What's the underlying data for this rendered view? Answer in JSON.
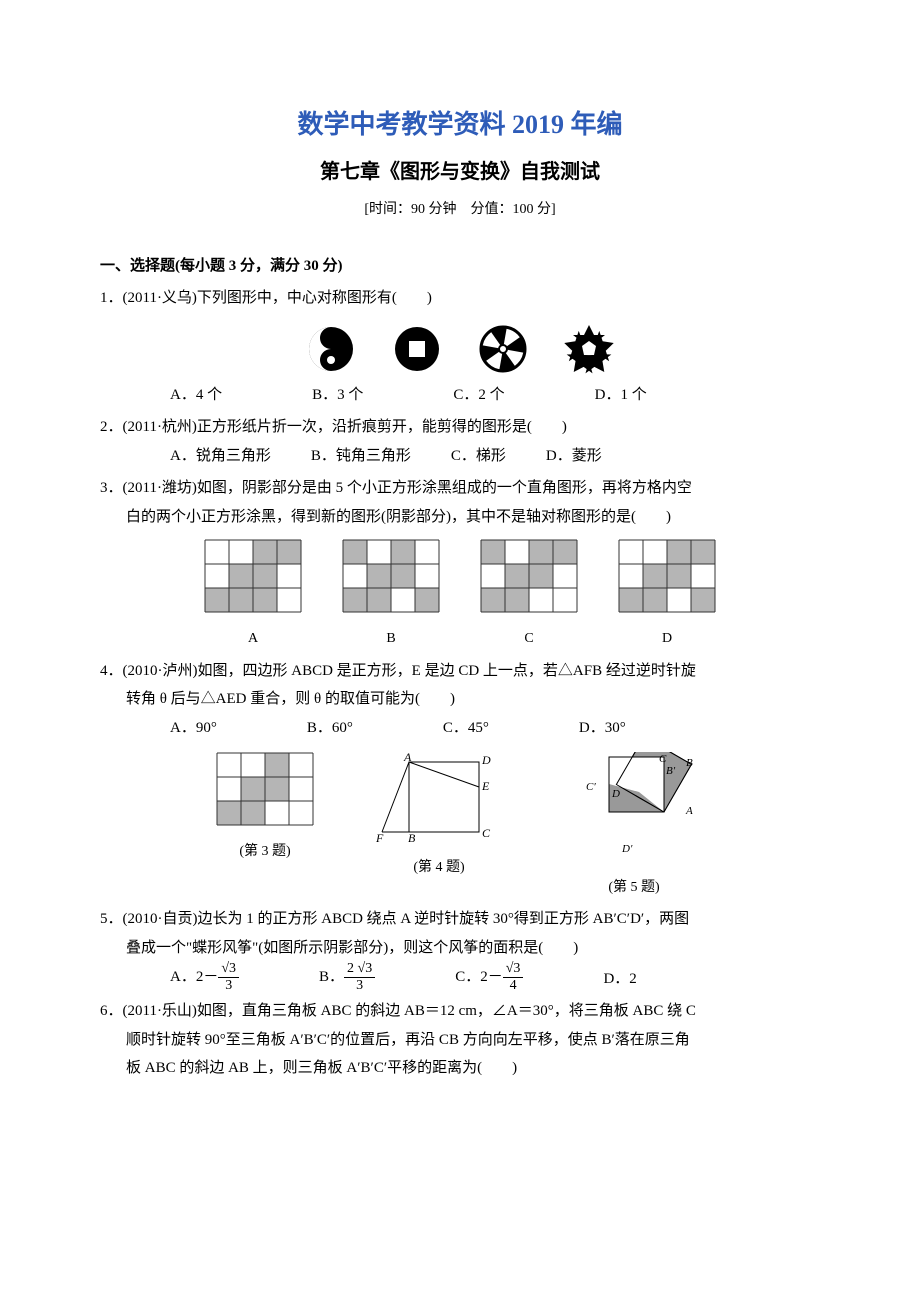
{
  "title1": "数学中考教学资料 2019 年编",
  "title2": "第七章《图形与变换》自我测试",
  "meta": "[时间：90 分钟　分值：100 分]",
  "sectionA": "一、选择题(每小题 3 分，满分 30 分)",
  "q1": {
    "stem": "1．(2011·义乌)下列图形中，中心对称图形有(　　)",
    "opts": [
      "A．4 个",
      "B．3 个",
      "C．2 个",
      "D．1 个"
    ],
    "icons": {
      "fill": "#000000",
      "bg": "#ffffff"
    }
  },
  "q2": {
    "stem": "2．(2011·杭州)正方形纸片折一次，沿折痕剪开，能剪得的图形是(　　)",
    "opts": [
      "A．锐角三角形",
      "B．钝角三角形",
      "C．梯形",
      "D．菱形"
    ]
  },
  "q3": {
    "stem1": "3．(2011·潍坊)如图，阴影部分是由 5 个小正方形涂黑组成的一个直角图形，再将方格内空",
    "stem2": "白的两个小正方形涂黑，得到新的图形(阴影部分)，其中不是轴对称图形的是(　　)",
    "grids_style": {
      "cell": 24,
      "stroke": "#333333",
      "fill": "#b5b5b5",
      "cols": 4,
      "rows": 3
    },
    "grids": {
      "base": [
        [
          0,
          2
        ],
        [
          1,
          1
        ],
        [
          1,
          2
        ],
        [
          2,
          0
        ],
        [
          2,
          1
        ]
      ],
      "A": [
        [
          0,
          3
        ],
        [
          2,
          2
        ]
      ],
      "B": [
        [
          0,
          0
        ],
        [
          2,
          3
        ]
      ],
      "C": [
        [
          0,
          0
        ],
        [
          0,
          3
        ]
      ],
      "D": [
        [
          0,
          3
        ],
        [
          2,
          3
        ]
      ]
    },
    "labels": [
      "A",
      "B",
      "C",
      "D"
    ]
  },
  "q4": {
    "stem1": "4．(2010·泸州)如图，四边形 ABCD 是正方形，E 是边 CD 上一点，若△AFB 经过逆时针旋",
    "stem2": "转角 θ 后与△AED 重合，则 θ 的取值可能为(　　)",
    "opts": [
      "A．90°",
      "B．60°",
      "C．45°",
      "D．30°"
    ]
  },
  "figrow": {
    "cap3": "(第 3 题)",
    "cap4": "(第 4 题)",
    "cap5": "(第 5 题)",
    "fig3_style": {
      "cell": 24,
      "stroke": "#333333",
      "fill": "#b5b5b5"
    },
    "fig3_cells": [
      [
        0,
        2
      ],
      [
        1,
        1
      ],
      [
        1,
        2
      ],
      [
        2,
        0
      ],
      [
        2,
        1
      ]
    ],
    "fig5_style": {
      "fill": "#999999",
      "stroke": "#000000"
    }
  },
  "q5": {
    "stem1": "5．(2010·自贡)边长为 1 的正方形 ABCD 绕点 A 逆时针旋转 30°得到正方形 AB′C′D′，两图",
    "stem2": "叠成一个\"蝶形风筝\"(如图所示阴影部分)，则这个风筝的面积是(　　)",
    "opts": [
      "A．2－",
      "B．",
      "C．2－",
      "D．2"
    ],
    "fracs": {
      "a_num": "√3",
      "a_den": "3",
      "b_num": "2 √3",
      "b_den": "3",
      "c_num": "√3",
      "c_den": "4"
    }
  },
  "q6": {
    "stem1": "6．(2011·乐山)如图，直角三角板 ABC 的斜边 AB＝12 cm，∠A＝30°，将三角板 ABC 绕 C",
    "stem2": "顺时针旋转 90°至三角板 A′B′C′的位置后，再沿 CB 方向向左平移，使点 B′落在原三角",
    "stem3": "板 ABC 的斜边 AB 上，则三角板 A′B′C′平移的距离为(　　)"
  }
}
